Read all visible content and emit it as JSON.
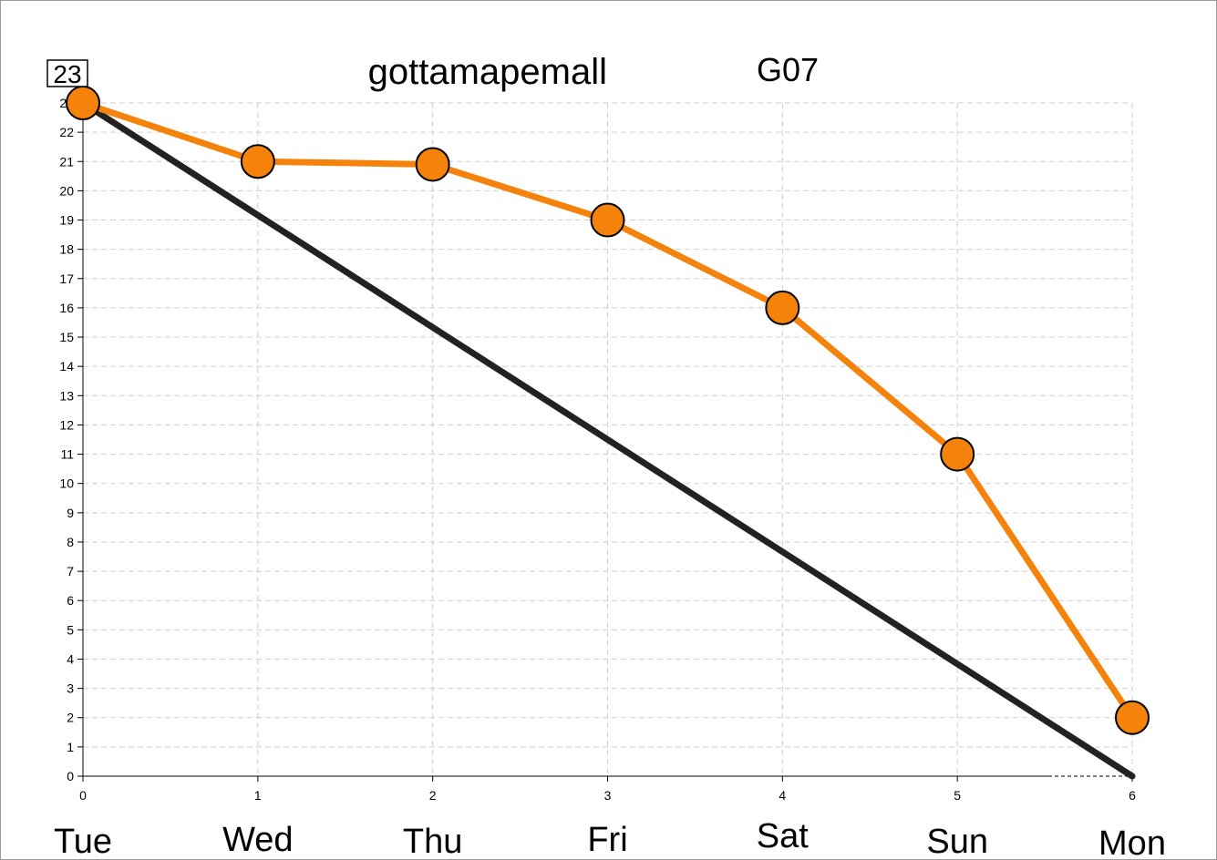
{
  "chart_data": {
    "type": "line",
    "title": "gottamapemall",
    "subtitle": "G07",
    "badge": "23",
    "x": [
      0,
      1,
      2,
      3,
      4,
      5,
      6
    ],
    "day_labels": [
      "Tue",
      "Wed",
      "Thu",
      "Fri",
      "Sat",
      "Sun",
      "Mon"
    ],
    "xlim": [
      0,
      6
    ],
    "ylim": [
      0,
      23
    ],
    "yticks": [
      0,
      1,
      2,
      3,
      4,
      5,
      6,
      7,
      8,
      9,
      10,
      11,
      12,
      13,
      14,
      15,
      16,
      17,
      18,
      19,
      20,
      21,
      22,
      23
    ],
    "grid": true,
    "series": [
      {
        "values": [
          23,
          21,
          20.9,
          19,
          16,
          11,
          2
        ],
        "color": "#f5820b",
        "marker": "circle"
      },
      {
        "values": [
          23,
          0
        ],
        "x": [
          0,
          6
        ],
        "color": "#222222",
        "marker": "none"
      }
    ]
  }
}
